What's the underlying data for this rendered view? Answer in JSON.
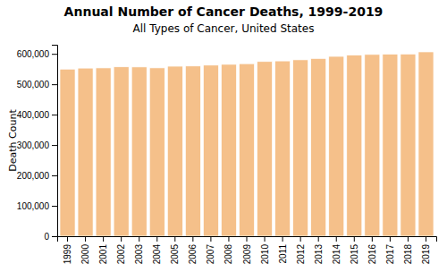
{
  "chart_data": {
    "type": "bar",
    "title": "Annual Number of Cancer Deaths, 1999-2019",
    "subtitle": "All Types of Cancer, United States",
    "ylabel": "Death Count",
    "categories": [
      "1999",
      "2000",
      "2001",
      "2002",
      "2003",
      "2004",
      "2005",
      "2006",
      "2007",
      "2008",
      "2009",
      "2010",
      "2011",
      "2012",
      "2013",
      "2014",
      "2015",
      "2016",
      "2017",
      "2018",
      "2019"
    ],
    "values": [
      549838,
      553091,
      553768,
      557271,
      556902,
      553888,
      559312,
      560028,
      562875,
      565469,
      567628,
      574743,
      576691,
      580350,
      584881,
      591699,
      595930,
      598038,
      599108,
      599601,
      606520
    ],
    "color": "#F5C08A",
    "ylim": [
      0,
      630000
    ],
    "yticks": [
      0,
      {
        "value": 100000,
        "label": "100,000"
      },
      {
        "value": 200000,
        "label": "200,000"
      },
      {
        "value": 300000,
        "label": "300,000"
      },
      {
        "value": 400000,
        "label": "400,000"
      },
      {
        "value": 500000,
        "label": "500,000"
      },
      {
        "value": 600000,
        "label": "600,000"
      }
    ],
    "grid": false
  }
}
